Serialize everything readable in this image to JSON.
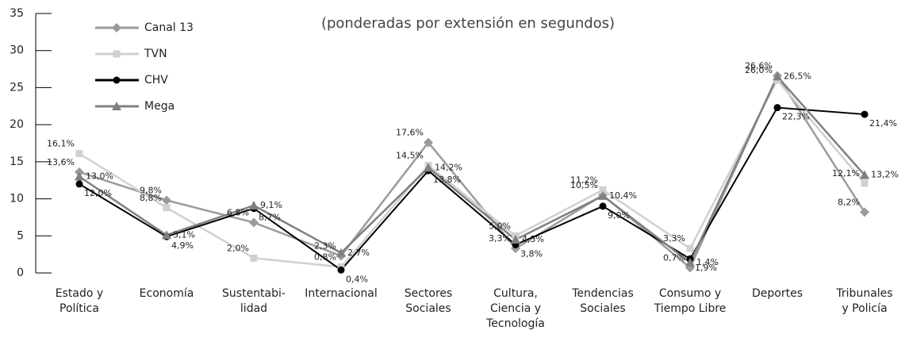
{
  "chart_data": {
    "type": "line",
    "title": "(ponderadas por extensión en segundos)",
    "categories": [
      "Estado y\nPolítica",
      "Economía",
      "Sustentabi-\nlidad",
      "Internacional",
      "Sectores\nSociales",
      "Cultura,\nCiencia y\nTecnología",
      "Tendencias\nSociales",
      "Consumo y\nTiempo Libre",
      "Deportes",
      "Tribunales\ny Policía"
    ],
    "series": [
      {
        "name": "Canal 13",
        "color": "#9b9b9b",
        "marker": "diamond",
        "values": [
          13.6,
          9.8,
          6.8,
          2.3,
          17.6,
          3.3,
          10.5,
          0.7,
          26.6,
          8.2
        ],
        "value_labels": [
          "13,6%",
          "9,8%",
          "6,8%",
          "2,3%",
          "17,6%",
          "3,3%",
          "10,5%",
          "0,7%",
          "26,6%",
          "8,2%"
        ]
      },
      {
        "name": "TVN",
        "color": "#d0d0d0",
        "marker": "square",
        "values": [
          16.1,
          8.8,
          2.0,
          0.8,
          14.5,
          5.0,
          11.2,
          3.3,
          26.0,
          12.1
        ],
        "value_labels": [
          "16,1%",
          "8,8%",
          "2,0%",
          "0,8%",
          "14,5%",
          "5,0%",
          "11,2%",
          "3,3%",
          "26,0%",
          "12,1%"
        ]
      },
      {
        "name": "CHV",
        "color": "#000000",
        "marker": "circle",
        "values": [
          12.0,
          4.9,
          8.7,
          0.4,
          13.8,
          3.8,
          9.0,
          1.9,
          22.3,
          21.4
        ],
        "value_labels": [
          "12,0%",
          "4,9%",
          "8,7%",
          "0,4%",
          "13,8%",
          "3,8%",
          "9,0%",
          "1,9%",
          "22,3%",
          "21,4%"
        ]
      },
      {
        "name": "Mega",
        "color": "#808080",
        "marker": "triangle",
        "values": [
          13.0,
          5.1,
          9.1,
          2.7,
          14.2,
          4.5,
          10.4,
          1.4,
          26.5,
          13.2
        ],
        "value_labels": [
          "13,0%",
          "5,1%",
          "9,1%",
          "2,7%",
          "14,2%",
          "4,5%",
          "10,4%",
          "1,4%",
          "26,5%",
          "13,2%"
        ]
      }
    ],
    "ylim": [
      0,
      35
    ],
    "yticks": [
      0,
      5,
      10,
      15,
      20,
      25,
      30,
      35
    ],
    "legend": "upper left"
  }
}
